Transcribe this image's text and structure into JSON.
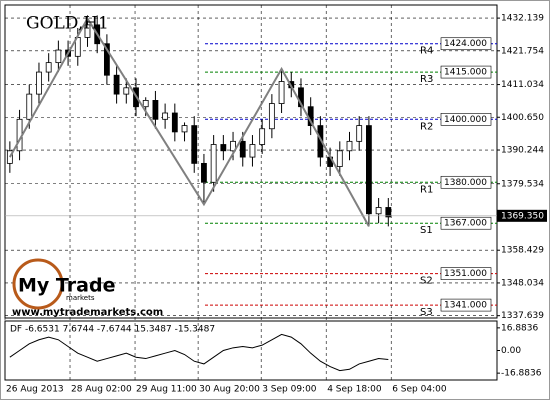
{
  "chart_data": {
    "type": "candlestick",
    "title": "GOLD,H1",
    "ylim": [
      1336.9,
      1436.3
    ],
    "xlim": [
      -0.5,
      50.2
    ],
    "yticks": [
      1432.139,
      1421.754,
      1411.034,
      {
        "value": 1400.65,
        "label": "1400.650"
      },
      1390.244,
      1379.534,
      1358.429,
      1348.034,
      1337.639
    ],
    "xticks": [
      {
        "value": -0.5,
        "label": "26 Aug 2013"
      },
      {
        "value": 6.2,
        "label": "28 Aug 02:00"
      },
      {
        "value": 12.9,
        "label": "29 Aug 11:00"
      },
      {
        "value": 19.4,
        "label": "30 Aug 20:00"
      },
      {
        "value": 25.9,
        "label": "3 Sep 09:00"
      },
      {
        "value": 32.6,
        "label": "4 Sep 18:00"
      },
      {
        "value": 39.3,
        "label": "6 Sep 04:00"
      }
    ],
    "grid": true,
    "open": [
      1386,
      1390,
      1400,
      1408,
      1415,
      1418,
      1422,
      1420,
      1426,
      1430,
      1424,
      1414,
      1408,
      1410,
      1404,
      1406,
      1400,
      1402,
      1396,
      1398,
      1386,
      1380,
      1392,
      1390,
      1393,
      1388,
      1392,
      1397,
      1405,
      1412,
      1410,
      1404,
      1398,
      1388,
      1385,
      1390,
      1393,
      1398,
      1370,
      1372
    ],
    "high": [
      1393,
      1403,
      1411,
      1418,
      1421,
      1425,
      1425,
      1429,
      1433,
      1433,
      1427,
      1417,
      1413,
      1413,
      1407,
      1409,
      1405,
      1405,
      1399,
      1401,
      1389,
      1395,
      1395,
      1396,
      1396,
      1395,
      1400,
      1408,
      1416,
      1415,
      1413,
      1407,
      1401,
      1391,
      1393,
      1396,
      1401,
      1401,
      1375,
      1375
    ],
    "low": [
      1383,
      1387,
      1397,
      1405,
      1412,
      1415,
      1417,
      1417,
      1423,
      1421,
      1411,
      1405,
      1405,
      1401,
      1401,
      1397,
      1397,
      1393,
      1393,
      1383,
      1373,
      1377,
      1387,
      1387,
      1385,
      1385,
      1389,
      1394,
      1402,
      1407,
      1401,
      1395,
      1385,
      1382,
      1382,
      1387,
      1390,
      1366,
      1367,
      1366
    ],
    "close": [
      1390,
      1400,
      1408,
      1415,
      1418,
      1422,
      1420,
      1426,
      1430,
      1424,
      1414,
      1408,
      1410,
      1404,
      1406,
      1400,
      1402,
      1396,
      1398,
      1386,
      1380,
      1392,
      1390,
      1393,
      1388,
      1392,
      1397,
      1405,
      1412,
      1410,
      1404,
      1398,
      1388,
      1385,
      1390,
      1393,
      1398,
      1370,
      1372,
      1369
    ],
    "zigzag": {
      "color": "#808080",
      "x": [
        0,
        8,
        20,
        28,
        37
      ],
      "values": [
        1388,
        1432,
        1373,
        1416,
        1366
      ]
    },
    "last_price": {
      "value": 1369.35,
      "label": "1369.350"
    },
    "levels": {
      "names": [
        "R4",
        "R3",
        "R2",
        "R1",
        "S1",
        "S2",
        "S3"
      ],
      "values": [
        1424,
        1415,
        1400,
        1380,
        1367,
        1351,
        1341
      ],
      "value_labels": [
        "1424.000",
        "1415.000",
        "1400.000",
        "1380.000",
        "1367.000",
        "1351.000",
        "1341.000"
      ],
      "colors": [
        "#0000cc",
        "#008000",
        "#0000cc",
        "#008000",
        "#008000",
        "#cc0000",
        "#cc0000"
      ]
    },
    "indicator": {
      "label": "DF -6.6531 7.6744 -7.6744 15.3487 -15.3487",
      "ylim": [
        -22,
        22
      ],
      "yticks": [
        16.8836,
        {
          "value": 0,
          "label": "0.00"
        },
        -16.8836
      ],
      "color": "#000000",
      "values": [
        -5,
        0,
        5,
        8,
        10,
        8,
        3,
        -2,
        -5,
        -8,
        -6,
        -4,
        -2,
        -5,
        -6,
        -4,
        -2,
        0,
        -3,
        -8,
        -10,
        -5,
        0,
        2,
        3,
        2,
        4,
        8,
        12,
        10,
        5,
        -2,
        -8,
        -12,
        -15,
        -14,
        -10,
        -8,
        -6,
        -6.7
      ]
    }
  },
  "logo": {
    "brand": "My Trade",
    "sub": "markets",
    "url": "www.mytrademarkets.com"
  }
}
